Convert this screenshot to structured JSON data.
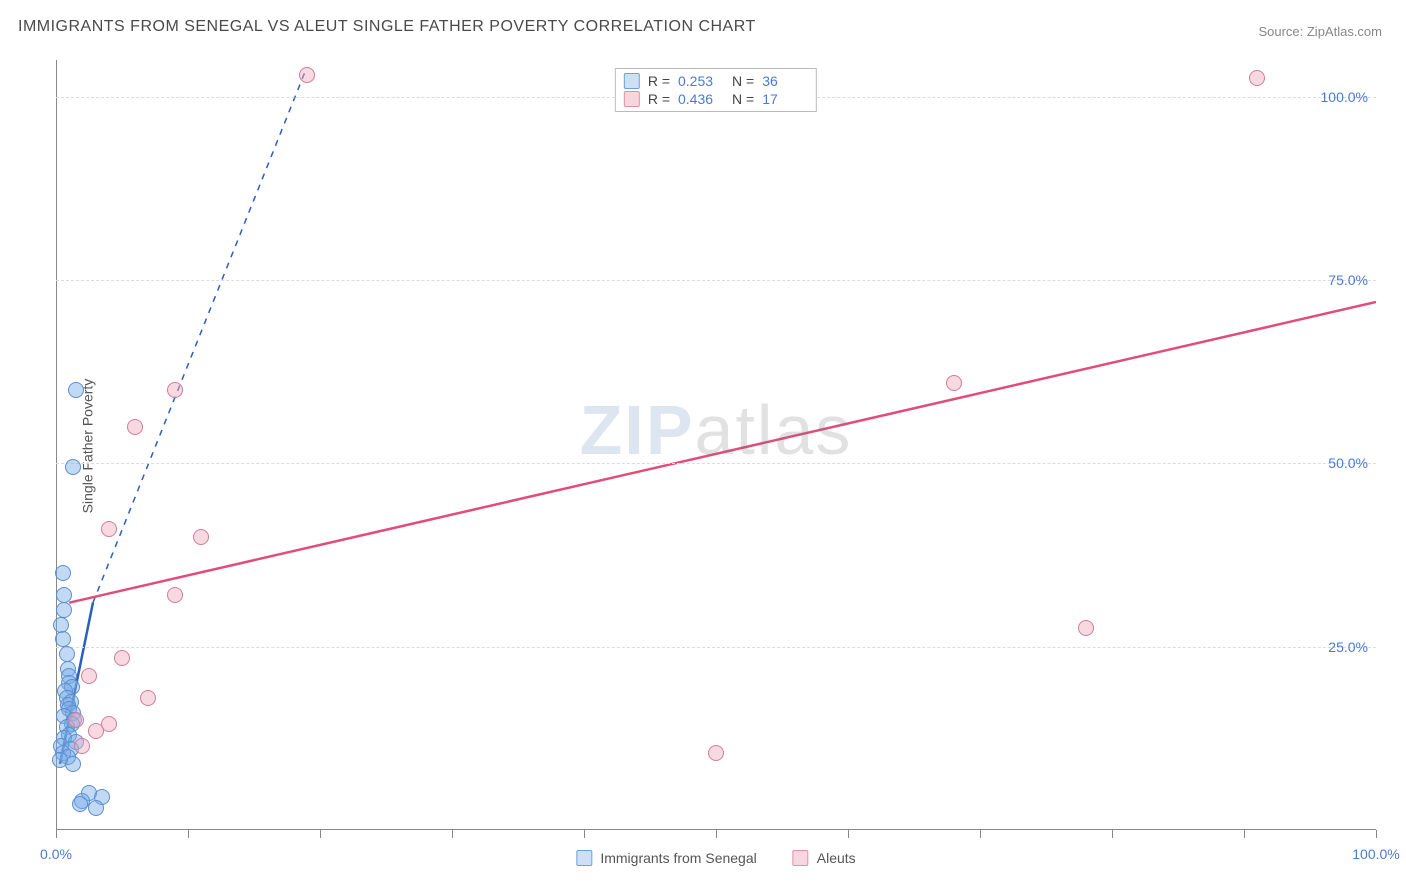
{
  "title": "IMMIGRANTS FROM SENEGAL VS ALEUT SINGLE FATHER POVERTY CORRELATION CHART",
  "source_label": "Source: ",
  "source_value": "ZipAtlas.com",
  "ylabel": "Single Father Poverty",
  "watermark_a": "ZIP",
  "watermark_b": "atlas",
  "chart": {
    "type": "scatter",
    "xlim": [
      0,
      100
    ],
    "ylim": [
      0,
      105
    ],
    "x_tick_values": [
      0,
      10,
      20,
      30,
      40,
      50,
      60,
      70,
      80,
      90,
      100
    ],
    "x_tick_labels": {
      "0": "0.0%",
      "100": "100.0%"
    },
    "y_tick_values": [
      25,
      50,
      75,
      100
    ],
    "y_tick_labels": {
      "25": "25.0%",
      "50": "50.0%",
      "75": "75.0%",
      "100": "100.0%"
    },
    "grid_color": "#dcdcdc",
    "axis_color": "#888888",
    "tick_label_color": "#4a7bd0",
    "background_color": "#ffffff",
    "legend_top": [
      {
        "swatch_fill": "#cfe0f5",
        "swatch_border": "#6aa1e0",
        "r": "0.253",
        "n": "36"
      },
      {
        "swatch_fill": "#f7d7de",
        "swatch_border": "#e290a7",
        "r": "0.436",
        "n": "17"
      }
    ],
    "legend_bottom": [
      {
        "swatch_fill": "#cfe0f5",
        "swatch_border": "#6aa1e0",
        "label": "Immigrants from Senegal"
      },
      {
        "swatch_fill": "#f7d7de",
        "swatch_border": "#e290a7",
        "label": "Aleuts"
      }
    ],
    "series": [
      {
        "name": "Immigrants from Senegal",
        "marker_fill": "rgba(120,170,230,0.45)",
        "marker_border": "#5a8fd0",
        "marker_radius": 8,
        "trend_color": "#2a5fbf",
        "trend_style": "solid",
        "trend_width": 2.5,
        "trend_points": [
          [
            0.3,
            9
          ],
          [
            2.8,
            31
          ]
        ],
        "extrap_style": "dashed",
        "extrap_points": [
          [
            2.8,
            31
          ],
          [
            19,
            104
          ]
        ],
        "points": [
          [
            1.5,
            60
          ],
          [
            1.3,
            49.5
          ],
          [
            0.5,
            35
          ],
          [
            0.6,
            32
          ],
          [
            0.6,
            30
          ],
          [
            0.4,
            28
          ],
          [
            0.5,
            26
          ],
          [
            0.8,
            24
          ],
          [
            0.9,
            22
          ],
          [
            1.0,
            21
          ],
          [
            1.0,
            20
          ],
          [
            1.2,
            19.5
          ],
          [
            0.7,
            19
          ],
          [
            0.8,
            18
          ],
          [
            1.1,
            17.5
          ],
          [
            0.9,
            17
          ],
          [
            1.0,
            16.5
          ],
          [
            1.3,
            16
          ],
          [
            0.6,
            15.5
          ],
          [
            1.4,
            15
          ],
          [
            1.2,
            14.5
          ],
          [
            0.8,
            14
          ],
          [
            1.0,
            13
          ],
          [
            0.6,
            12.5
          ],
          [
            1.5,
            12
          ],
          [
            0.4,
            11.5
          ],
          [
            1.1,
            11
          ],
          [
            0.5,
            10.5
          ],
          [
            0.9,
            10
          ],
          [
            0.3,
            9.5
          ],
          [
            1.3,
            9
          ],
          [
            2.5,
            5
          ],
          [
            3.5,
            4.5
          ],
          [
            2.0,
            4
          ],
          [
            1.8,
            3.5
          ],
          [
            3.0,
            3
          ]
        ]
      },
      {
        "name": "Aleuts",
        "marker_fill": "rgba(240,170,190,0.45)",
        "marker_border": "#d07d9a",
        "marker_radius": 8,
        "trend_color": "#e04d78",
        "trend_style": "solid",
        "trend_width": 2.5,
        "trend_points": [
          [
            1,
            31
          ],
          [
            100,
            72
          ]
        ],
        "points": [
          [
            19,
            103
          ],
          [
            91,
            102.5
          ],
          [
            68,
            61
          ],
          [
            9,
            60
          ],
          [
            6,
            55
          ],
          [
            11,
            40
          ],
          [
            4,
            41
          ],
          [
            9,
            32
          ],
          [
            5,
            23.5
          ],
          [
            78,
            27.5
          ],
          [
            2.5,
            21
          ],
          [
            7,
            18
          ],
          [
            4,
            14.5
          ],
          [
            3,
            13.5
          ],
          [
            50,
            10.5
          ],
          [
            2,
            11.5
          ],
          [
            1.5,
            15
          ]
        ]
      }
    ]
  }
}
